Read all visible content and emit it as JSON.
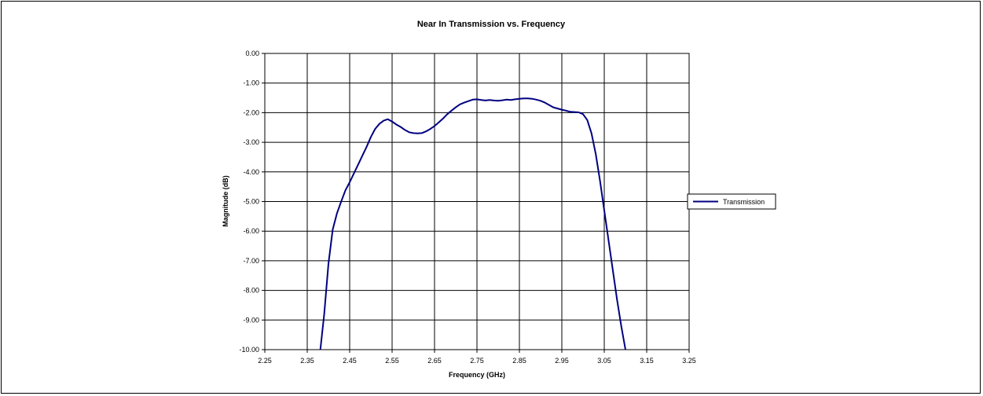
{
  "chart_data": {
    "type": "line",
    "title": "Near In Transmission vs. Frequency",
    "xlabel": "Frequency (GHz)",
    "ylabel": "Magnitude (dB)",
    "xlim": [
      2.25,
      3.25
    ],
    "ylim": [
      -10,
      0
    ],
    "x_ticks": [
      "2.25",
      "2.35",
      "2.45",
      "2.55",
      "2.65",
      "2.75",
      "2.85",
      "2.95",
      "3.05",
      "3.15",
      "3.25"
    ],
    "y_ticks": [
      "0.00",
      "-1.00",
      "-2.00",
      "-3.00",
      "-4.00",
      "-5.00",
      "-6.00",
      "-7.00",
      "-8.00",
      "-9.00",
      "-10.00"
    ],
    "grid": true,
    "legend_position": "right",
    "series": [
      {
        "name": "Transmission",
        "color": "#000080",
        "x": [
          2.381,
          2.39,
          2.4,
          2.41,
          2.42,
          2.43,
          2.44,
          2.45,
          2.46,
          2.47,
          2.48,
          2.49,
          2.5,
          2.51,
          2.52,
          2.53,
          2.54,
          2.55,
          2.56,
          2.57,
          2.58,
          2.59,
          2.6,
          2.61,
          2.62,
          2.63,
          2.64,
          2.65,
          2.66,
          2.67,
          2.68,
          2.69,
          2.7,
          2.71,
          2.72,
          2.73,
          2.74,
          2.75,
          2.76,
          2.77,
          2.78,
          2.79,
          2.8,
          2.81,
          2.82,
          2.83,
          2.84,
          2.85,
          2.86,
          2.87,
          2.88,
          2.89,
          2.9,
          2.91,
          2.92,
          2.93,
          2.94,
          2.95,
          2.96,
          2.97,
          2.98,
          2.99,
          3.0,
          3.01,
          3.02,
          3.03,
          3.04,
          3.05,
          3.06,
          3.07,
          3.08,
          3.09,
          3.1
        ],
        "y": [
          -10.0,
          -8.8,
          -7.1,
          -5.95,
          -5.4,
          -5.0,
          -4.62,
          -4.35,
          -4.05,
          -3.75,
          -3.45,
          -3.15,
          -2.82,
          -2.55,
          -2.38,
          -2.27,
          -2.22,
          -2.3,
          -2.4,
          -2.48,
          -2.58,
          -2.66,
          -2.69,
          -2.7,
          -2.69,
          -2.63,
          -2.55,
          -2.45,
          -2.33,
          -2.2,
          -2.05,
          -1.93,
          -1.82,
          -1.72,
          -1.66,
          -1.61,
          -1.56,
          -1.55,
          -1.57,
          -1.59,
          -1.57,
          -1.59,
          -1.6,
          -1.58,
          -1.56,
          -1.57,
          -1.55,
          -1.53,
          -1.52,
          -1.52,
          -1.53,
          -1.56,
          -1.6,
          -1.66,
          -1.74,
          -1.82,
          -1.86,
          -1.9,
          -1.93,
          -1.97,
          -1.98,
          -1.99,
          -2.05,
          -2.25,
          -2.7,
          -3.4,
          -4.3,
          -5.3,
          -6.3,
          -7.3,
          -8.3,
          -9.2,
          -10.0
        ]
      }
    ]
  }
}
